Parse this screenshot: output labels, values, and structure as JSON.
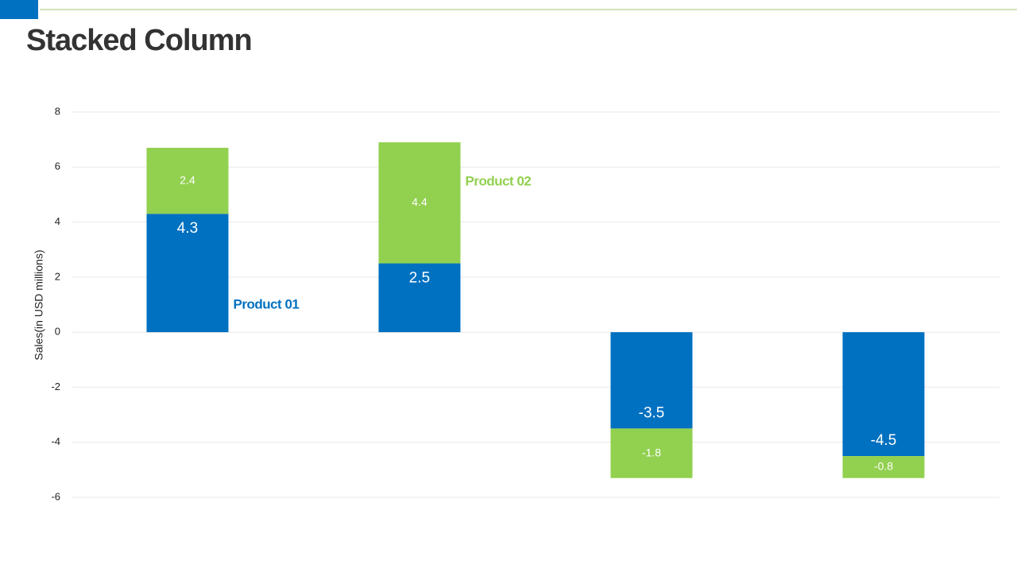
{
  "chart_data": {
    "type": "stacked_bar",
    "title": "Stacked Column",
    "y_label": "Sales(in USD millions)",
    "categories": [
      null,
      null,
      null,
      null
    ],
    "series": [
      {
        "name": "Product 01",
        "color": "#0070c0",
        "values": [
          4.3,
          2.5,
          -3.5,
          -4.5
        ]
      },
      {
        "name": "Product 02",
        "color": "#92d050",
        "values": [
          2.4,
          4.4,
          -1.8,
          -0.8
        ]
      }
    ],
    "ylim": [
      -6,
      8
    ],
    "yticks": [
      -6,
      -4,
      -2,
      0,
      2,
      4,
      6,
      8
    ],
    "grid": true
  }
}
